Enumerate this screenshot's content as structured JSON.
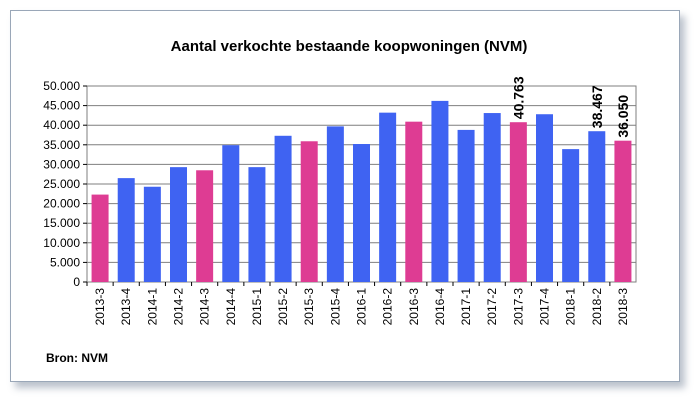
{
  "chart_data": {
    "type": "bar",
    "title": "Aantal verkochte bestaande koopwoningen (NVM)",
    "source": "Bron: NVM",
    "xlabel": "",
    "ylabel": "",
    "ylim": [
      0,
      50000
    ],
    "grid": true,
    "yticks": [
      "0",
      "5.000",
      "10.000",
      "15.000",
      "20.000",
      "25.000",
      "30.000",
      "35.000",
      "40.000",
      "45.000",
      "50.000"
    ],
    "categories": [
      "2013-3",
      "2013-4",
      "2014-1",
      "2014-2",
      "2014-3",
      "2014-4",
      "2015-1",
      "2015-2",
      "2015-3",
      "2015-4",
      "2016-1",
      "2016-2",
      "2016-3",
      "2016-4",
      "2017-1",
      "2017-2",
      "2017-3",
      "2017-4",
      "2018-1",
      "2018-2",
      "2018-3"
    ],
    "values": [
      22300,
      26500,
      24300,
      29300,
      28500,
      34900,
      29300,
      37300,
      35900,
      39700,
      35200,
      43200,
      40900,
      46200,
      38800,
      43100,
      40763,
      42800,
      33900,
      38467,
      36050
    ],
    "highlight": [
      true,
      false,
      false,
      false,
      true,
      false,
      false,
      false,
      true,
      false,
      false,
      false,
      true,
      false,
      false,
      false,
      true,
      false,
      false,
      false,
      true
    ],
    "data_labels": [
      {
        "category": "2017-3",
        "text": "40.763"
      },
      {
        "category": "2018-2",
        "text": "38.467"
      },
      {
        "category": "2018-3",
        "text": "36.050"
      }
    ],
    "colors": {
      "regular": "#3f63f2",
      "highlight": "#de3c93",
      "grid": "#7f7f7f"
    }
  }
}
